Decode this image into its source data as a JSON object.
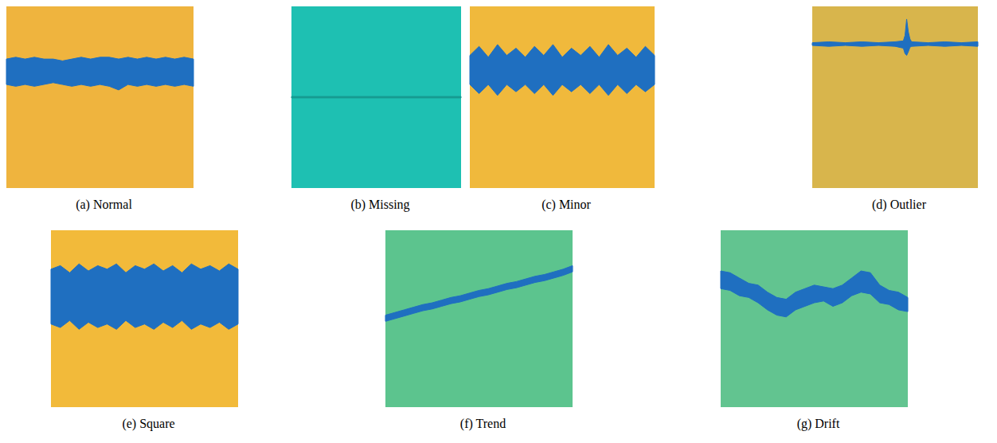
{
  "chart_data": [
    {
      "type": "band",
      "title": "(a) Normal",
      "color": "#1f6fc0",
      "xlim": [
        0,
        100
      ],
      "ylim": [
        0,
        100
      ],
      "tick_labels": false,
      "x": [
        0,
        5,
        10,
        15,
        20,
        25,
        30,
        35,
        40,
        45,
        50,
        55,
        60,
        65,
        70,
        75,
        80,
        85,
        90,
        95,
        100
      ],
      "upper": [
        71,
        72,
        71,
        72,
        71,
        71,
        70,
        71,
        72,
        71,
        72,
        72,
        71,
        72,
        71,
        72,
        71,
        72,
        71,
        72,
        71
      ],
      "lower": [
        57,
        56,
        57,
        56,
        57,
        58,
        57,
        56,
        57,
        56,
        57,
        56,
        54,
        57,
        56,
        57,
        56,
        57,
        56,
        57,
        56
      ]
    },
    {
      "type": "band",
      "title": "(b) Missing",
      "color": "#169c92",
      "xlim": [
        0,
        100
      ],
      "ylim": [
        0,
        100
      ],
      "tick_labels": false,
      "x": [
        0,
        100
      ],
      "upper": [
        50.4,
        50.4
      ],
      "lower": [
        49.6,
        49.6
      ]
    },
    {
      "type": "band",
      "title": "(c) Minor",
      "color": "#1f6fc0",
      "xlim": [
        0,
        100
      ],
      "ylim": [
        0,
        100
      ],
      "tick_labels": false,
      "x": [
        0,
        5,
        10,
        15,
        20,
        25,
        30,
        35,
        40,
        45,
        50,
        55,
        60,
        65,
        70,
        75,
        80,
        85,
        90,
        95,
        100
      ],
      "upper": [
        73,
        78,
        72,
        79,
        73,
        77,
        72,
        78,
        73,
        79,
        72,
        77,
        73,
        78,
        72,
        79,
        73,
        77,
        72,
        78,
        73
      ],
      "lower": [
        57,
        52,
        57,
        51,
        57,
        53,
        57,
        52,
        57,
        51,
        57,
        53,
        57,
        52,
        57,
        51,
        57,
        52,
        57,
        53,
        57
      ]
    },
    {
      "type": "band",
      "title": "(d) Outlier",
      "color": "#1f6fc0",
      "xlim": [
        0,
        100
      ],
      "ylim": [
        0,
        100
      ],
      "tick_labels": false,
      "x": [
        0,
        10,
        20,
        30,
        40,
        50,
        55,
        56,
        57,
        58,
        59,
        60,
        70,
        80,
        90,
        100
      ],
      "upper": [
        80,
        80.5,
        80,
        80.5,
        80,
        80.5,
        81,
        84,
        93,
        86,
        82,
        80.5,
        80,
        80.5,
        80,
        80.5
      ],
      "lower": [
        78.5,
        78,
        78.5,
        78,
        78.5,
        78,
        77,
        74,
        73,
        75,
        77.5,
        78,
        78.5,
        78,
        78.5,
        78
      ]
    },
    {
      "type": "band",
      "title": "(e) Square",
      "color": "#1f6fc0",
      "xlim": [
        0,
        100
      ],
      "ylim": [
        0,
        100
      ],
      "tick_labels": false,
      "x": [
        0,
        5,
        10,
        15,
        20,
        25,
        30,
        35,
        40,
        45,
        50,
        55,
        60,
        65,
        70,
        75,
        80,
        85,
        90,
        95,
        100
      ],
      "upper": [
        78,
        80,
        76,
        81,
        77,
        80,
        78,
        81,
        76,
        80,
        78,
        81,
        77,
        80,
        76,
        81,
        78,
        80,
        77,
        81,
        78
      ],
      "lower": [
        47,
        45,
        49,
        44,
        48,
        45,
        47,
        44,
        49,
        45,
        47,
        44,
        48,
        45,
        49,
        44,
        47,
        45,
        48,
        44,
        47
      ]
    },
    {
      "type": "band",
      "title": "(f) Trend",
      "color": "#1f6fc0",
      "xlim": [
        0,
        100
      ],
      "ylim": [
        0,
        100
      ],
      "tick_labels": false,
      "x": [
        0,
        5,
        10,
        15,
        20,
        25,
        30,
        35,
        40,
        45,
        50,
        55,
        60,
        65,
        70,
        75,
        80,
        85,
        90,
        95,
        100
      ],
      "upper": [
        52,
        53.5,
        55,
        56.5,
        58,
        59,
        60.5,
        62,
        63,
        64.5,
        66,
        67,
        68.5,
        70,
        71,
        72.5,
        74,
        75,
        76.5,
        78,
        80
      ],
      "lower": [
        48.5,
        50,
        51.5,
        53,
        54.5,
        55.5,
        57,
        58.5,
        59.5,
        61,
        62.5,
        63.5,
        65,
        66.5,
        67.5,
        69,
        70.5,
        71.5,
        73,
        74.5,
        76.5
      ]
    },
    {
      "type": "band",
      "title": "(g) Drift",
      "color": "#1f6fc0",
      "xlim": [
        0,
        100
      ],
      "ylim": [
        0,
        100
      ],
      "tick_labels": false,
      "x": [
        0,
        5,
        10,
        15,
        20,
        25,
        30,
        35,
        40,
        45,
        50,
        55,
        60,
        65,
        70,
        75,
        80,
        85,
        90,
        95,
        100
      ],
      "upper": [
        77,
        76,
        73,
        70,
        69,
        65,
        62,
        61,
        65,
        67,
        69,
        68,
        67,
        69,
        73,
        77,
        76,
        69,
        66,
        65,
        62
      ],
      "lower": [
        67,
        66,
        63,
        62,
        59,
        55,
        52,
        51,
        55,
        57,
        59,
        60,
        57,
        59,
        63,
        65,
        64,
        59,
        58,
        55,
        54
      ]
    }
  ]
}
